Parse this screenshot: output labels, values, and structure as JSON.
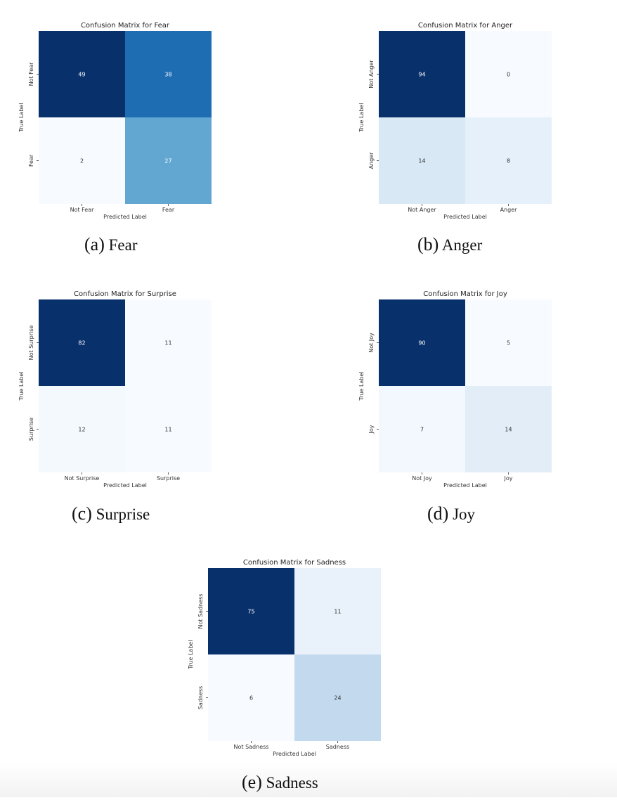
{
  "chart_data": [
    {
      "type": "heatmap",
      "title": "Confusion Matrix for Fear",
      "xlabel": "Predicted Label",
      "ylabel": "True Label",
      "x_categories": [
        "Not Fear",
        "Fear"
      ],
      "y_categories": [
        "Not Fear",
        "Fear"
      ],
      "values": [
        [
          49,
          38
        ],
        [
          2,
          27
        ]
      ],
      "colormap": "Blues",
      "caption_label": "(a)",
      "caption_text": "Fear"
    },
    {
      "type": "heatmap",
      "title": "Confusion Matrix for Anger",
      "xlabel": "Predicted Label",
      "ylabel": "True Label",
      "x_categories": [
        "Not Anger",
        "Anger"
      ],
      "y_categories": [
        "Not Anger",
        "Anger"
      ],
      "values": [
        [
          94,
          0
        ],
        [
          14,
          8
        ]
      ],
      "colormap": "Blues",
      "caption_label": "(b)",
      "caption_text": "Anger"
    },
    {
      "type": "heatmap",
      "title": "Confusion Matrix for Surprise",
      "xlabel": "Predicted Label",
      "ylabel": "True Label",
      "x_categories": [
        "Not Surprise",
        "Surprise"
      ],
      "y_categories": [
        "Not Surprise",
        "Surprise"
      ],
      "values": [
        [
          82,
          11
        ],
        [
          12,
          11
        ]
      ],
      "colormap": "Blues",
      "caption_label": "(c)",
      "caption_text": "Surprise"
    },
    {
      "type": "heatmap",
      "title": "Confusion Matrix for Joy",
      "xlabel": "Predicted Label",
      "ylabel": "True Label",
      "x_categories": [
        "Not Joy",
        "Joy"
      ],
      "y_categories": [
        "Not Joy",
        "Joy"
      ],
      "values": [
        [
          90,
          5
        ],
        [
          7,
          14
        ]
      ],
      "colormap": "Blues",
      "caption_label": "(d)",
      "caption_text": "Joy"
    },
    {
      "type": "heatmap",
      "title": "Confusion Matrix for Sadness",
      "xlabel": "Predicted Label",
      "ylabel": "True Label",
      "x_categories": [
        "Not Sadness",
        "Sadness"
      ],
      "y_categories": [
        "Not Sadness",
        "Sadness"
      ],
      "values": [
        [
          75,
          11
        ],
        [
          6,
          24
        ]
      ],
      "colormap": "Blues",
      "caption_label": "(e)",
      "caption_text": "Sadness"
    }
  ]
}
